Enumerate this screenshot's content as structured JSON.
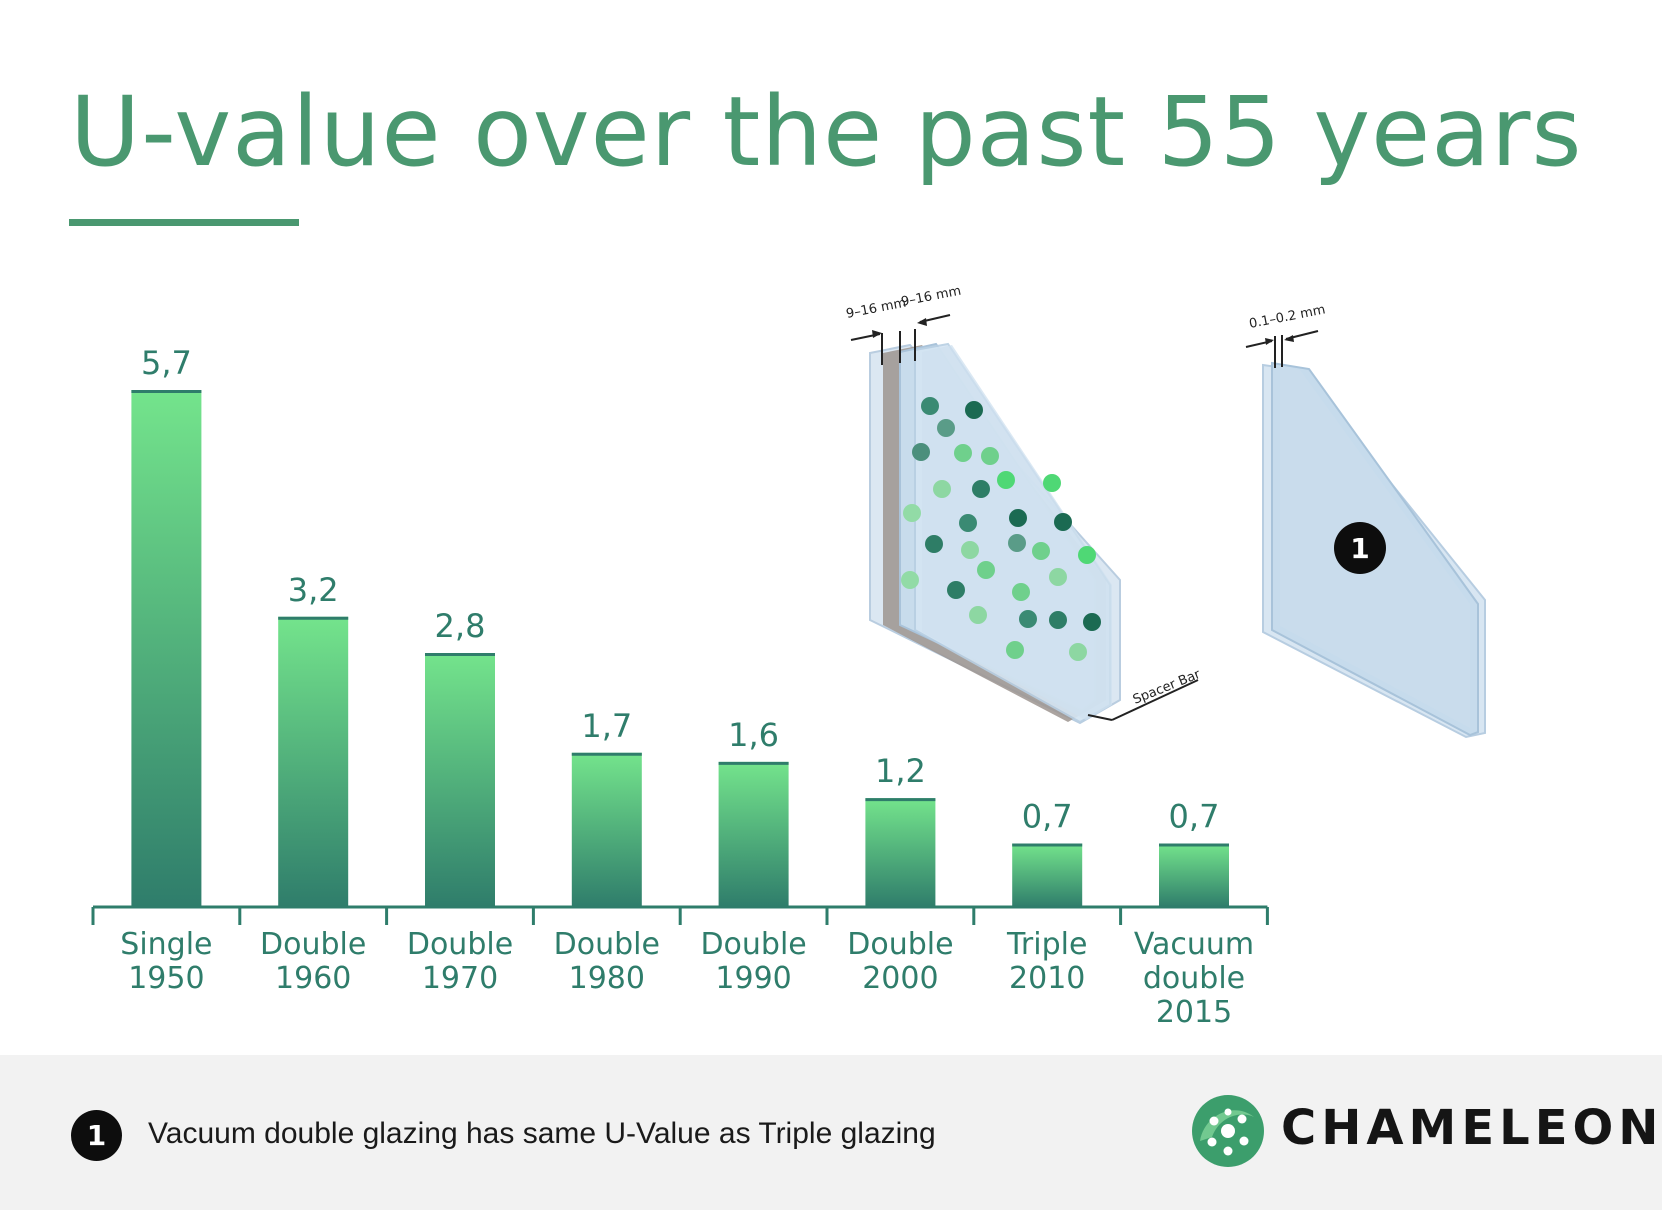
{
  "title": "U-value over the past 55 years",
  "chart_data": {
    "type": "bar",
    "categories": [
      [
        "Single",
        "1950"
      ],
      [
        "Double",
        "1960"
      ],
      [
        "Double",
        "1970"
      ],
      [
        "Double",
        "1980"
      ],
      [
        "Double",
        "1990"
      ],
      [
        "Double",
        "2000"
      ],
      [
        "Triple",
        "2010"
      ],
      [
        "Vacuum",
        "double",
        "2015"
      ]
    ],
    "values": [
      5.7,
      3.2,
      2.8,
      1.7,
      1.6,
      1.2,
      0.7,
      0.7
    ],
    "value_labels": [
      "5,7",
      "3,2",
      "2,8",
      "1,7",
      "1,6",
      "1,2",
      "0,7",
      "0,7"
    ],
    "ylim": [
      0,
      5.7
    ],
    "grid": false,
    "bar_gradient": [
      "#74e48c",
      "#2f7d6b"
    ],
    "label_color": "#2f7d6b"
  },
  "illustrations": {
    "double_glazing": {
      "gap_label": "9–16 mm",
      "spacer_label": "Spacer Bar"
    },
    "vacuum_glazing": {
      "gap_label": "0.1–0.2 mm",
      "badge": "1"
    }
  },
  "footer": {
    "badge": "1",
    "note": "Vacuum double glazing has same U-Value as Triple glazing"
  },
  "brand": {
    "name": "CHAMELEON",
    "logo_color": "#3c9e6c"
  },
  "colors": {
    "title": "#4a9870",
    "footer_bg": "#f2f2f2"
  }
}
